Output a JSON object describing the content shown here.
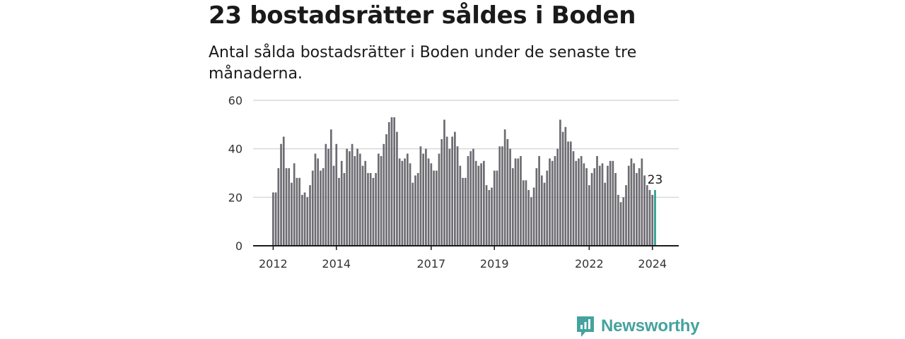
{
  "header": {
    "title": "23 bostadsrätter såldes i Boden",
    "subtitle": "Antal sålda bostadsrätter i Boden under de senaste tre månaderna."
  },
  "brand": {
    "name": "Newsworthy",
    "color": "#45a29e"
  },
  "chart_data": {
    "type": "bar",
    "title": "23 bostadsrätter såldes i Boden",
    "ylim": [
      0,
      60
    ],
    "yticks": [
      0,
      20,
      40,
      60
    ],
    "xticks": [
      "2012",
      "2014",
      "2017",
      "2019",
      "2022",
      "2024"
    ],
    "xtick_indices": [
      0,
      24,
      60,
      84,
      120,
      144
    ],
    "bar_color": "#6d6c72",
    "highlight_color": "#2a9d8f",
    "highlight_label": "23",
    "values": [
      22,
      22,
      32,
      42,
      45,
      32,
      32,
      26,
      34,
      28,
      28,
      21,
      22,
      20,
      25,
      31,
      38,
      36,
      31,
      32,
      42,
      40,
      48,
      33,
      42,
      28,
      35,
      30,
      40,
      39,
      42,
      37,
      40,
      38,
      33,
      35,
      30,
      30,
      28,
      30,
      38,
      37,
      42,
      46,
      51,
      53,
      53,
      47,
      36,
      35,
      36,
      38,
      34,
      26,
      29,
      30,
      41,
      38,
      40,
      36,
      34,
      31,
      31,
      38,
      44,
      52,
      45,
      40,
      45,
      47,
      41,
      33,
      28,
      28,
      37,
      39,
      40,
      35,
      33,
      34,
      35,
      25,
      23,
      24,
      31,
      31,
      41,
      41,
      48,
      44,
      40,
      32,
      36,
      36,
      37,
      27,
      27,
      23,
      20,
      24,
      32,
      37,
      29,
      26,
      31,
      36,
      35,
      37,
      40,
      52,
      47,
      49,
      43,
      43,
      39,
      35,
      36,
      37,
      34,
      32,
      25,
      30,
      32,
      37,
      33,
      34,
      26,
      33,
      35,
      35,
      30,
      21,
      18,
      20,
      25,
      33,
      36,
      34,
      30,
      32,
      36,
      29,
      25,
      23,
      21,
      23
    ]
  }
}
